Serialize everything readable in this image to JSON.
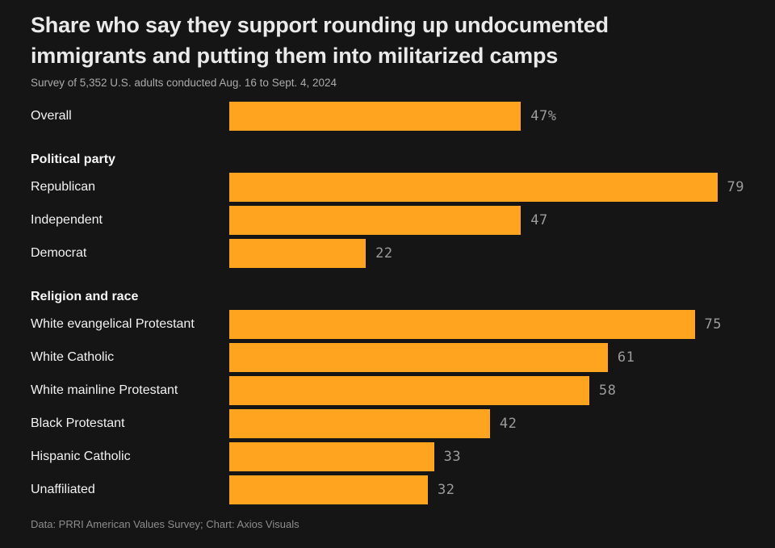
{
  "header": {
    "title": "Share who say they support rounding up undocumented immigrants and putting them into militarized camps",
    "subtitle": "Survey of 5,352 U.S. adults conducted Aug. 16 to Sept. 4, 2024"
  },
  "colors": {
    "background": "#151515",
    "bar": "#ffa41f",
    "value_label": "#9c9c9c"
  },
  "chart_data": {
    "type": "bar",
    "orientation": "horizontal",
    "title": "Share who say they support rounding up undocumented immigrants and putting them into militarized camps",
    "subtitle": "Survey of 5,352 U.S. adults conducted Aug. 16 to Sept. 4, 2024",
    "unit": "%",
    "xlim": [
      0,
      83
    ],
    "grid": false,
    "legend": false,
    "groups": [
      {
        "heading": "",
        "rows": [
          {
            "label": "Overall",
            "value": 47,
            "value_label": "47%"
          }
        ]
      },
      {
        "heading": "Political party",
        "rows": [
          {
            "label": "Republican",
            "value": 79,
            "value_label": "79"
          },
          {
            "label": "Independent",
            "value": 47,
            "value_label": "47"
          },
          {
            "label": "Democrat",
            "value": 22,
            "value_label": "22"
          }
        ]
      },
      {
        "heading": "Religion and race",
        "rows": [
          {
            "label": "White evangelical Protestant",
            "value": 75,
            "value_label": "75"
          },
          {
            "label": "White Catholic",
            "value": 61,
            "value_label": "61"
          },
          {
            "label": "White mainline Protestant",
            "value": 58,
            "value_label": "58"
          },
          {
            "label": "Black Protestant",
            "value": 42,
            "value_label": "42"
          },
          {
            "label": "Hispanic Catholic",
            "value": 33,
            "value_label": "33"
          },
          {
            "label": "Unaffiliated",
            "value": 32,
            "value_label": "32"
          }
        ]
      }
    ]
  },
  "footer": {
    "credit": "Data: PRRI American Values Survey; Chart: Axios Visuals"
  }
}
